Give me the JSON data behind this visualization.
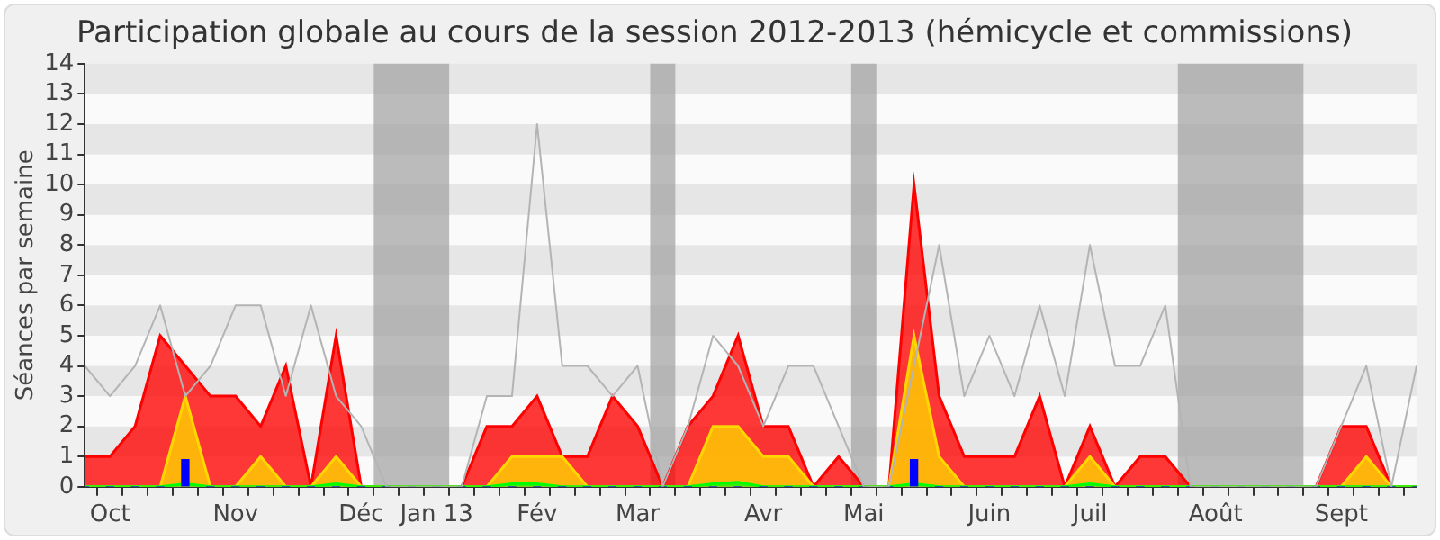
{
  "chart_data": {
    "type": "area",
    "title": "Participation globale au cours de la session 2012-2013 (hémicycle et commissions)",
    "ylabel": "Séances par semaine",
    "categories": [
      null,
      "Oct",
      null,
      null,
      null,
      null,
      "Nov",
      null,
      null,
      null,
      null,
      "Déc",
      null,
      null,
      "Jan 13",
      null,
      null,
      null,
      "Fév",
      null,
      null,
      null,
      "Mar",
      null,
      null,
      null,
      null,
      "Avr",
      null,
      null,
      null,
      "Mai",
      null,
      null,
      null,
      null,
      "Juin",
      null,
      null,
      null,
      "Juil",
      null,
      null,
      null,
      null,
      "Août",
      null,
      null,
      null,
      null,
      "Sept",
      null,
      null,
      null
    ],
    "ylim": [
      0,
      14
    ],
    "yticks": [
      0,
      1,
      2,
      3,
      4,
      5,
      6,
      7,
      8,
      9,
      10,
      11,
      12,
      13,
      14
    ],
    "legend": false,
    "marker": "none",
    "series": [
      {
        "color": "#ff0000",
        "values": [
          1,
          1,
          2,
          5,
          4,
          3,
          3,
          2,
          4,
          0,
          5,
          0,
          0,
          0,
          0,
          0,
          2,
          2,
          3,
          1,
          1,
          3,
          2,
          0,
          2,
          3,
          5,
          2,
          2,
          0,
          1,
          0,
          0,
          10,
          3,
          1,
          1,
          1,
          3,
          0,
          2,
          0,
          1,
          1,
          0,
          0,
          0,
          0,
          0,
          0,
          2,
          2,
          0,
          0
        ]
      },
      {
        "color": "#ffd700",
        "values": [
          0,
          0,
          0,
          0,
          3,
          0,
          0,
          1,
          0,
          0,
          1,
          0,
          0,
          0,
          0,
          0,
          0,
          1,
          1,
          1,
          0,
          0,
          0,
          0,
          0,
          2,
          2,
          1,
          1,
          0,
          0,
          0,
          0,
          5,
          1,
          0,
          0,
          0,
          0,
          0,
          1,
          0,
          0,
          0,
          0,
          0,
          0,
          0,
          0,
          0,
          0,
          1,
          0,
          0
        ]
      },
      {
        "color": "#00ff00",
        "values": [
          0,
          0,
          0,
          0,
          0.1,
          0,
          0,
          0,
          0,
          0,
          0.1,
          0,
          0,
          0,
          0,
          0,
          0,
          0.1,
          0.1,
          0,
          0,
          0,
          0,
          0,
          0,
          0.1,
          0.15,
          0,
          0,
          0,
          0,
          0,
          0,
          0.1,
          0,
          0,
          0,
          0,
          0,
          0,
          0.1,
          0,
          0,
          0,
          0,
          0,
          0,
          0,
          0,
          0,
          0,
          0,
          0,
          0
        ]
      },
      {
        "type": "bar",
        "color": "#0000ff",
        "values": [
          0,
          0,
          0,
          0,
          0.9,
          0,
          0,
          0,
          0,
          0,
          0,
          0,
          0,
          0,
          0,
          0,
          0,
          0,
          0,
          0,
          0,
          0,
          0,
          0,
          0,
          0,
          0,
          0,
          0,
          0,
          0,
          0,
          0,
          0.9,
          0,
          0,
          0,
          0,
          0,
          0,
          0,
          0,
          0,
          0,
          0,
          0,
          0,
          0,
          0,
          0,
          0,
          0,
          0,
          0
        ]
      },
      {
        "type": "line",
        "color": "#b4b4b4",
        "values": [
          4,
          3,
          4,
          6,
          3,
          4,
          6,
          6,
          3,
          6,
          3,
          2,
          0,
          0,
          0,
          0,
          3,
          3,
          12,
          4,
          4,
          3,
          4,
          0,
          2,
          5,
          4,
          2,
          4,
          4,
          2,
          0,
          0,
          4,
          8,
          3,
          5,
          3,
          6,
          3,
          8,
          4,
          4,
          6,
          0,
          0,
          0,
          0,
          0,
          0,
          2,
          4,
          0,
          4
        ]
      }
    ]
  }
}
